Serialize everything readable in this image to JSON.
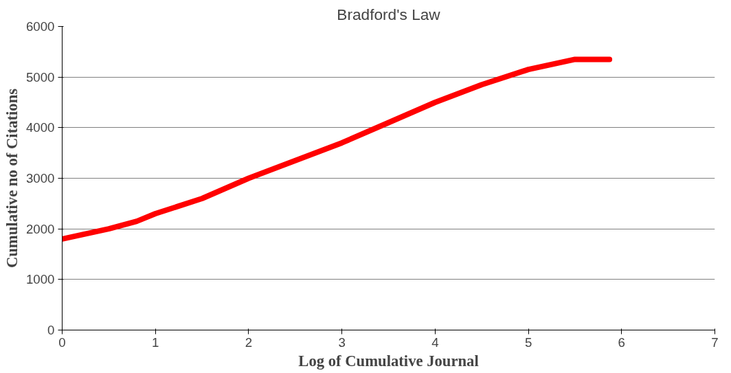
{
  "chart_data": {
    "type": "line",
    "title": "Bradford's Law",
    "xlabel": "Log of Cumulative Journal",
    "ylabel": "Cumulative no of Citations",
    "x": [
      0,
      0.5,
      0.8,
      1,
      1.5,
      2,
      2.5,
      3,
      3.5,
      4,
      4.5,
      5,
      5.5,
      5.87
    ],
    "series": [
      {
        "color": "#ff0000",
        "values": [
          1800,
          2000,
          2150,
          2300,
          2600,
          3000,
          3350,
          3700,
          4100,
          4500,
          4850,
          5150,
          5350,
          5350
        ]
      }
    ],
    "xlim": [
      0,
      7
    ],
    "xticks": [
      0,
      1,
      2,
      3,
      4,
      5,
      6,
      7
    ],
    "ylim": [
      0,
      6000
    ],
    "yticks": [
      0,
      1000,
      2000,
      3000,
      4000,
      5000,
      6000
    ],
    "grid": "y",
    "marker": "none",
    "line_style": "solid"
  }
}
